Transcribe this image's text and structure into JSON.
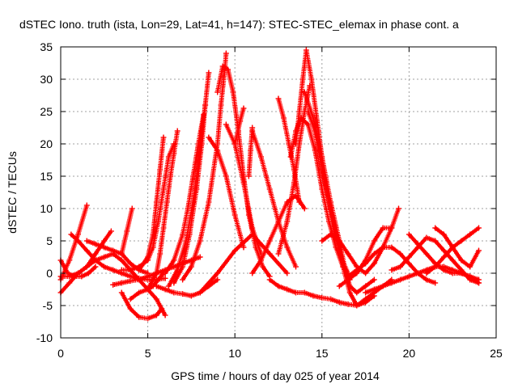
{
  "chart_data": {
    "type": "scatter",
    "title": "dSTEC Iono. truth (ista, Lon=29, Lat=41, h=147): STEC-STEC_elemax in phase cont. a",
    "xlabel": "GPS time / hours of day 025 of year 2014",
    "ylabel": "dSTEC  / TECUs",
    "xlim": [
      0,
      25
    ],
    "ylim": [
      -10,
      35
    ],
    "xticks": [
      "0",
      "5",
      "10",
      "15",
      "20",
      "25"
    ],
    "yticks": [
      "-10",
      "-5",
      "0",
      "5",
      "10",
      "15",
      "20",
      "25",
      "30",
      "35"
    ],
    "grid": true,
    "legend": "none",
    "marker": "plus",
    "color": "#ff0000",
    "series": [
      {
        "x": [
          0.0,
          0.5,
          1.0,
          1.5
        ],
        "y": [
          -1.0,
          2.0,
          6.0,
          10.5
        ]
      },
      {
        "x": [
          0.0,
          0.5,
          1.0,
          1.5,
          2.0,
          2.5,
          3.0,
          3.5,
          4.0,
          4.5,
          5.0,
          5.5,
          6.0
        ],
        "y": [
          -3.0,
          -1.5,
          0.0,
          1.0,
          2.0,
          2.5,
          3.0,
          2.0,
          0.5,
          -1.0,
          -2.5,
          -4.0,
          -6.5
        ]
      },
      {
        "x": [
          0.0,
          0.5,
          1.0,
          1.5,
          2.0,
          2.5,
          2.9
        ],
        "y": [
          -0.5,
          -0.5,
          0.0,
          1.0,
          3.0,
          5.0,
          6.5
        ]
      },
      {
        "x": [
          0.0,
          0.4,
          0.8,
          1.2,
          1.6,
          2.0
        ],
        "y": [
          2.0,
          0.0,
          -0.5,
          -0.5,
          0.0,
          1.0
        ]
      },
      {
        "x": [
          0.6,
          1.0,
          1.5,
          2.0,
          2.5,
          3.0,
          3.5,
          4.0,
          4.5,
          5.0,
          5.5,
          6.0
        ],
        "y": [
          6.0,
          5.0,
          3.5,
          2.0,
          1.0,
          0.5,
          0.0,
          -0.5,
          -0.8,
          -1.0,
          -1.0,
          -0.8
        ]
      },
      {
        "x": [
          1.5,
          2.0,
          2.5,
          3.0,
          3.5,
          4.0,
          4.5,
          5.0
        ],
        "y": [
          5.0,
          4.5,
          4.0,
          3.5,
          3.0,
          1.5,
          0.5,
          0.0
        ]
      },
      {
        "x": [
          3.0,
          3.5,
          4.0,
          4.5,
          5.0,
          5.5,
          6.0,
          6.5,
          7.0,
          7.5,
          8.0
        ],
        "y": [
          -1.8,
          -1.5,
          -1.2,
          -1.0,
          -0.5,
          0.0,
          0.5,
          1.0,
          1.5,
          2.0,
          2.5
        ]
      },
      {
        "x": [
          3.5,
          3.8,
          4.1
        ],
        "y": [
          3.0,
          6.5,
          10.0
        ]
      },
      {
        "x": [
          3.5,
          4.0,
          4.5,
          5.0,
          5.5,
          5.8
        ],
        "y": [
          -3.0,
          -5.5,
          -6.8,
          -7.0,
          -6.5,
          -5.5
        ]
      },
      {
        "x": [
          4.0,
          4.5,
          5.0,
          5.3,
          5.6,
          5.9
        ],
        "y": [
          -4.0,
          -3.0,
          -2.5,
          -2.0,
          -1.0,
          0.0
        ]
      },
      {
        "x": [
          3.5,
          4.0,
          4.5,
          5.0,
          5.3,
          5.6,
          5.9,
          6.2,
          6.5
        ],
        "y": [
          0.5,
          0.5,
          1.0,
          2.0,
          4.0,
          8.0,
          13.0,
          18.0,
          20.0
        ]
      },
      {
        "x": [
          4.5,
          5.0,
          5.3,
          5.5,
          5.7,
          5.9
        ],
        "y": [
          0.5,
          2.5,
          6.0,
          11.0,
          16.0,
          21.0
        ]
      },
      {
        "x": [
          5.0,
          5.5,
          5.7,
          5.9,
          6.1,
          6.3,
          6.5,
          6.7
        ],
        "y": [
          -2.5,
          0.0,
          3.0,
          7.0,
          11.0,
          15.0,
          18.5,
          22.0
        ]
      },
      {
        "x": [
          5.5,
          6.0,
          6.5,
          7.0,
          7.5,
          8.0,
          8.5,
          9.0
        ],
        "y": [
          -2.0,
          -2.5,
          -3.0,
          -3.2,
          -3.5,
          -3.0,
          -2.0,
          -1.0
        ]
      },
      {
        "x": [
          6.0,
          6.5,
          7.0,
          7.3,
          7.6,
          7.9,
          8.2
        ],
        "y": [
          0.0,
          2.0,
          6.0,
          10.0,
          15.0,
          20.0,
          24.5
        ]
      },
      {
        "x": [
          6.2,
          6.7,
          7.2,
          7.6,
          7.9,
          8.1,
          8.3
        ],
        "y": [
          -2.0,
          0.5,
          5.0,
          11.0,
          17.0,
          22.0,
          26.0
        ]
      },
      {
        "x": [
          6.5,
          7.0,
          7.4,
          7.8,
          8.1,
          8.3,
          8.5
        ],
        "y": [
          -1.5,
          1.0,
          6.0,
          13.0,
          20.0,
          26.0,
          31.0
        ]
      },
      {
        "x": [
          7.0,
          7.5,
          8.0,
          8.5,
          9.0,
          9.2,
          9.4,
          9.5
        ],
        "y": [
          -1.0,
          1.0,
          5.0,
          11.0,
          20.0,
          26.0,
          31.0,
          34.0
        ]
      },
      {
        "x": [
          8.5,
          9.0,
          9.5,
          10.0,
          10.5
        ],
        "y": [
          21.0,
          19.0,
          15.0,
          9.0,
          4.0
        ]
      },
      {
        "x": [
          9.0,
          9.3,
          9.6,
          9.9,
          10.2,
          10.5,
          10.8,
          11.2,
          11.6,
          12.0
        ],
        "y": [
          28.0,
          32.0,
          31.5,
          28.0,
          22.0,
          15.0,
          9.0,
          4.0,
          1.0,
          -0.5
        ]
      },
      {
        "x": [
          9.5,
          10.0,
          10.5,
          11.0,
          11.5
        ],
        "y": [
          23.0,
          20.0,
          14.0,
          7.0,
          3.0
        ]
      },
      {
        "x": [
          10.0,
          10.3,
          10.5
        ],
        "y": [
          20.0,
          23.5,
          25.5
        ]
      },
      {
        "x": [
          10.8,
          10.9,
          11.0
        ],
        "y": [
          15.0,
          19.0,
          22.5
        ]
      },
      {
        "x": [
          11.0,
          11.5,
          12.0,
          12.5,
          13.0,
          13.5
        ],
        "y": [
          22.0,
          18.0,
          13.0,
          8.0,
          4.0,
          1.0
        ]
      },
      {
        "x": [
          8.0,
          9.0,
          10.0,
          11.0,
          12.0,
          13.0
        ],
        "y": [
          -3.0,
          0.0,
          3.5,
          6.0,
          3.0,
          0.0
        ]
      },
      {
        "x": [
          11.0,
          11.5,
          12.0,
          12.5,
          13.0,
          13.5,
          14.0
        ],
        "y": [
          0.0,
          2.0,
          5.0,
          8.0,
          11.0,
          12.0,
          10.0
        ]
      },
      {
        "x": [
          12.5,
          12.8,
          13.1,
          13.4,
          13.7
        ],
        "y": [
          27.0,
          24.0,
          20.0,
          16.0,
          11.0
        ]
      },
      {
        "x": [
          12.5,
          13.0,
          13.4,
          13.7,
          14.0,
          14.3
        ],
        "y": [
          3.0,
          8.0,
          14.0,
          20.0,
          25.0,
          29.0
        ]
      },
      {
        "x": [
          13.2,
          13.5,
          13.8,
          14.2,
          14.6,
          15.0,
          15.4,
          15.8,
          16.2,
          16.6
        ],
        "y": [
          18.0,
          22.0,
          24.0,
          23.0,
          19.0,
          13.0,
          8.0,
          4.0,
          1.0,
          -1.0
        ]
      },
      {
        "x": [
          13.5,
          13.7,
          13.9,
          14.1,
          14.4,
          14.8,
          15.2,
          15.6,
          16.0,
          16.5
        ],
        "y": [
          20.0,
          25.0,
          30.0,
          34.5,
          30.0,
          22.0,
          14.0,
          8.0,
          3.0,
          0.0
        ]
      },
      {
        "x": [
          14.0,
          14.5,
          15.0,
          15.5,
          16.0,
          16.3,
          16.6,
          17.0,
          17.5,
          18.0
        ],
        "y": [
          28.0,
          24.0,
          18.0,
          11.0,
          5.0,
          1.0,
          -2.0,
          -3.0,
          -2.0,
          -1.0
        ]
      },
      {
        "x": [
          14.2,
          14.6,
          15.0,
          15.5,
          16.0,
          16.3,
          16.6,
          17.0,
          17.5,
          18.0,
          18.5,
          19.0
        ],
        "y": [
          25.0,
          22.0,
          16.0,
          10.0,
          4.0,
          0.0,
          -3.0,
          -5.0,
          -4.0,
          -3.0,
          -2.0,
          -1.0
        ]
      },
      {
        "x": [
          12.0,
          12.5,
          13.0,
          13.5,
          14.0,
          14.5,
          15.0,
          15.5,
          16.0,
          16.5,
          17.0,
          17.5,
          18.0
        ],
        "y": [
          -1.0,
          -2.0,
          -2.5,
          -3.0,
          -3.0,
          -3.5,
          -3.8,
          -4.0,
          -4.5,
          -4.8,
          -5.0,
          -4.5,
          -3.5
        ]
      },
      {
        "x": [
          15.0,
          15.5,
          16.0,
          16.5,
          17.0,
          17.5,
          18.0,
          18.5,
          19.0,
          19.4
        ],
        "y": [
          5.0,
          6.0,
          5.0,
          3.0,
          1.0,
          0.0,
          1.5,
          4.0,
          7.0,
          10.0
        ]
      },
      {
        "x": [
          16.0,
          16.5,
          17.0,
          17.5,
          18.0,
          18.5,
          19.0
        ],
        "y": [
          -2.0,
          -1.0,
          0.0,
          2.0,
          5.0,
          7.0,
          7.0
        ]
      },
      {
        "x": [
          16.5,
          17.0,
          17.5,
          18.0,
          18.5,
          19.0,
          19.5,
          20.0,
          20.5,
          21.0,
          21.5
        ],
        "y": [
          -0.5,
          0.5,
          1.5,
          3.0,
          4.0,
          4.0,
          3.0,
          1.5,
          0.0,
          -1.0,
          -1.5
        ]
      },
      {
        "x": [
          17.5,
          18.0,
          18.5,
          19.0,
          19.5,
          20.0,
          20.5,
          21.0,
          21.5,
          22.0
        ],
        "y": [
          -3.0,
          -2.5,
          -2.0,
          -1.5,
          -1.0,
          -0.5,
          0.0,
          0.5,
          1.0,
          1.0
        ]
      },
      {
        "x": [
          19.0,
          19.5,
          20.0,
          20.5,
          21.0,
          21.5,
          22.0,
          22.5,
          23.0,
          23.5,
          24.0
        ],
        "y": [
          0.5,
          1.0,
          2.5,
          4.0,
          5.5,
          5.0,
          3.5,
          2.0,
          0.5,
          -1.0,
          -1.5
        ]
      },
      {
        "x": [
          20.0,
          20.5,
          21.0,
          21.5,
          22.0,
          22.5,
          23.0,
          23.5,
          24.0
        ],
        "y": [
          6.0,
          4.5,
          3.0,
          1.5,
          0.5,
          0.0,
          0.0,
          -0.5,
          -1.0
        ]
      },
      {
        "x": [
          21.5,
          22.0,
          22.5,
          23.0,
          23.5,
          24.0
        ],
        "y": [
          7.0,
          6.0,
          4.0,
          2.0,
          1.0,
          3.5
        ]
      },
      {
        "x": [
          21.0,
          21.5,
          22.0,
          22.5,
          23.0,
          23.5,
          24.0
        ],
        "y": [
          0.0,
          1.0,
          2.5,
          4.0,
          5.0,
          6.0,
          7.0
        ]
      },
      {
        "x": [
          22.0,
          22.5,
          23.0,
          23.5,
          24.0
        ],
        "y": [
          1.0,
          0.5,
          0.0,
          -0.5,
          -1.5
        ]
      }
    ]
  }
}
